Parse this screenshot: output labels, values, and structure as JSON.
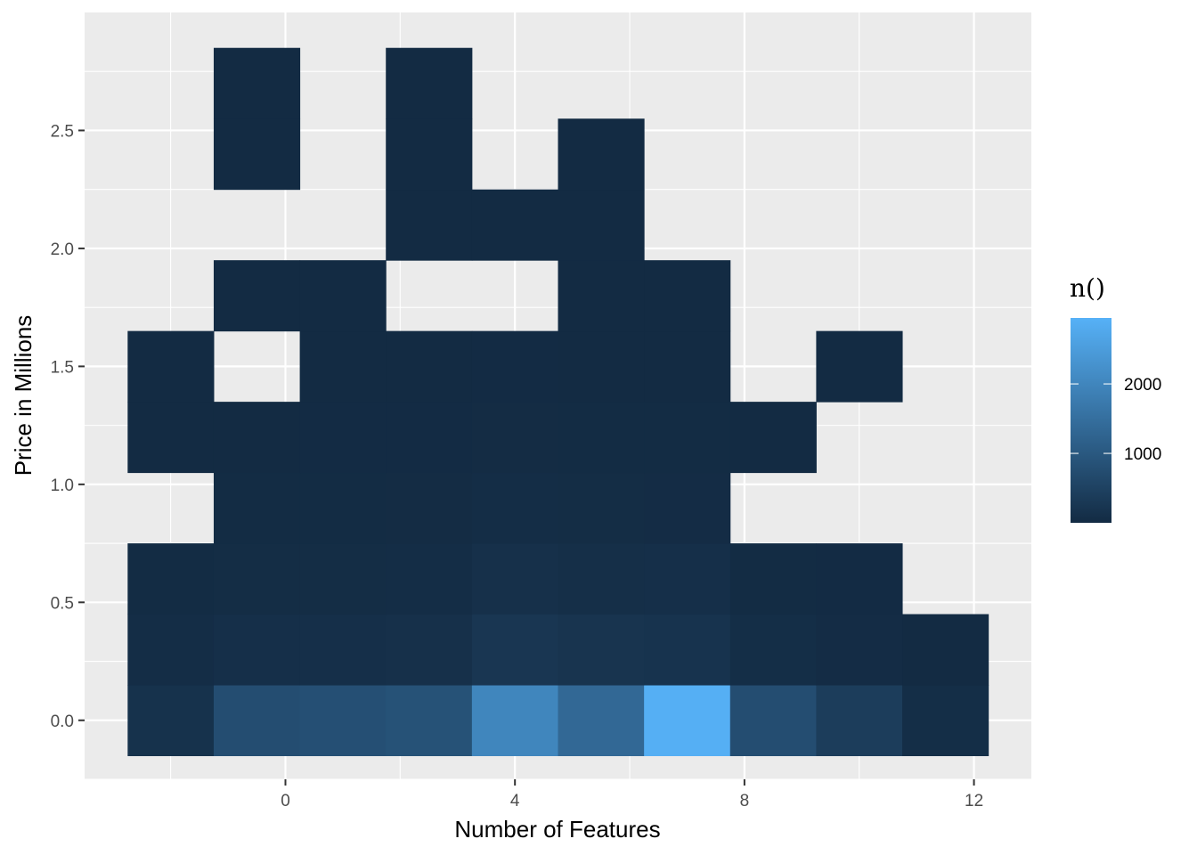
{
  "chart_data": {
    "type": "heatmap",
    "title": "",
    "xlabel": "Number of Features",
    "ylabel": "Price in Millions",
    "xlim": [
      -3.5,
      13
    ],
    "ylim": [
      -0.25,
      3.0
    ],
    "x_ticks": [
      0,
      4,
      8,
      12
    ],
    "x_tick_labels": [
      "0",
      "4",
      "8",
      "12"
    ],
    "y_ticks": [
      0.0,
      0.5,
      1.0,
      1.5,
      2.0,
      2.5
    ],
    "y_tick_labels": [
      "0.0",
      "0.5",
      "1.0",
      "1.5",
      "2.0",
      "2.5"
    ],
    "grid": true,
    "bin_width_x": 1.5,
    "bin_height_y": 0.3,
    "x_bin_centers": [
      -2,
      -0.5,
      1,
      2.5,
      4,
      5.5,
      7,
      8.5,
      10,
      11.5
    ],
    "y_bin_centers": [
      0.0,
      0.3,
      0.6,
      0.9,
      1.2,
      1.5,
      1.8,
      2.1,
      2.4,
      2.7
    ],
    "cells": [
      {
        "x": -2,
        "y": 0.0,
        "n": 150
      },
      {
        "x": -0.5,
        "y": 0.0,
        "n": 750
      },
      {
        "x": 1,
        "y": 0.0,
        "n": 800
      },
      {
        "x": 2.5,
        "y": 0.0,
        "n": 850
      },
      {
        "x": 4,
        "y": 0.0,
        "n": 2000
      },
      {
        "x": 5.5,
        "y": 0.0,
        "n": 1350
      },
      {
        "x": 7,
        "y": 0.0,
        "n": 2900
      },
      {
        "x": 8.5,
        "y": 0.0,
        "n": 750
      },
      {
        "x": 10,
        "y": 0.0,
        "n": 400
      },
      {
        "x": 11.5,
        "y": 0.0,
        "n": 60
      },
      {
        "x": -2,
        "y": 0.3,
        "n": 50
      },
      {
        "x": -0.5,
        "y": 0.3,
        "n": 100
      },
      {
        "x": 1,
        "y": 0.3,
        "n": 100
      },
      {
        "x": 2.5,
        "y": 0.3,
        "n": 120
      },
      {
        "x": 4,
        "y": 0.3,
        "n": 250
      },
      {
        "x": 5.5,
        "y": 0.3,
        "n": 200
      },
      {
        "x": 7,
        "y": 0.3,
        "n": 180
      },
      {
        "x": 8.5,
        "y": 0.3,
        "n": 60
      },
      {
        "x": 10,
        "y": 0.3,
        "n": 30
      },
      {
        "x": 11.5,
        "y": 0.3,
        "n": 5
      },
      {
        "x": -2,
        "y": 0.6,
        "n": 20
      },
      {
        "x": -0.5,
        "y": 0.6,
        "n": 40
      },
      {
        "x": 1,
        "y": 0.6,
        "n": 40
      },
      {
        "x": 2.5,
        "y": 0.6,
        "n": 50
      },
      {
        "x": 4,
        "y": 0.6,
        "n": 120
      },
      {
        "x": 5.5,
        "y": 0.6,
        "n": 80
      },
      {
        "x": 7,
        "y": 0.6,
        "n": 100
      },
      {
        "x": 8.5,
        "y": 0.6,
        "n": 20
      },
      {
        "x": 10,
        "y": 0.6,
        "n": 10
      },
      {
        "x": -0.5,
        "y": 0.9,
        "n": 15
      },
      {
        "x": 1,
        "y": 0.9,
        "n": 20
      },
      {
        "x": 2.5,
        "y": 0.9,
        "n": 25
      },
      {
        "x": 4,
        "y": 0.9,
        "n": 50
      },
      {
        "x": 5.5,
        "y": 0.9,
        "n": 40
      },
      {
        "x": 7,
        "y": 0.9,
        "n": 30
      },
      {
        "x": -2,
        "y": 1.2,
        "n": 5
      },
      {
        "x": -0.5,
        "y": 1.2,
        "n": 8
      },
      {
        "x": 1,
        "y": 1.2,
        "n": 10
      },
      {
        "x": 2.5,
        "y": 1.2,
        "n": 12
      },
      {
        "x": 4,
        "y": 1.2,
        "n": 25
      },
      {
        "x": 5.5,
        "y": 1.2,
        "n": 20
      },
      {
        "x": 7,
        "y": 1.2,
        "n": 15
      },
      {
        "x": 8.5,
        "y": 1.2,
        "n": 3
      },
      {
        "x": -2,
        "y": 1.5,
        "n": 3
      },
      {
        "x": 1,
        "y": 1.5,
        "n": 5
      },
      {
        "x": 2.5,
        "y": 1.5,
        "n": 5
      },
      {
        "x": 4,
        "y": 1.5,
        "n": 10
      },
      {
        "x": 5.5,
        "y": 1.5,
        "n": 8
      },
      {
        "x": 7,
        "y": 1.5,
        "n": 5
      },
      {
        "x": 10,
        "y": 1.5,
        "n": 1
      },
      {
        "x": -0.5,
        "y": 1.8,
        "n": 2
      },
      {
        "x": 1,
        "y": 1.8,
        "n": 2
      },
      {
        "x": 5.5,
        "y": 1.8,
        "n": 4
      },
      {
        "x": 7,
        "y": 1.8,
        "n": 3
      },
      {
        "x": 2.5,
        "y": 2.1,
        "n": 2
      },
      {
        "x": 4,
        "y": 2.1,
        "n": 2
      },
      {
        "x": 5.5,
        "y": 2.1,
        "n": 3
      },
      {
        "x": -0.5,
        "y": 2.4,
        "n": 1
      },
      {
        "x": 2.5,
        "y": 2.4,
        "n": 1
      },
      {
        "x": 5.5,
        "y": 2.4,
        "n": 1
      },
      {
        "x": -0.5,
        "y": 2.7,
        "n": 1
      },
      {
        "x": 2.5,
        "y": 2.7,
        "n": 1
      }
    ],
    "legend": {
      "title": "n()",
      "placement": "right",
      "range": [
        1,
        2950
      ],
      "breaks": [
        1000,
        2000
      ],
      "break_labels": [
        "1000",
        "2000"
      ],
      "low_color": "#132B43",
      "high_color": "#56B1F7"
    },
    "panel_background": "#EBEBEB",
    "grid_color": "#FFFFFF"
  }
}
